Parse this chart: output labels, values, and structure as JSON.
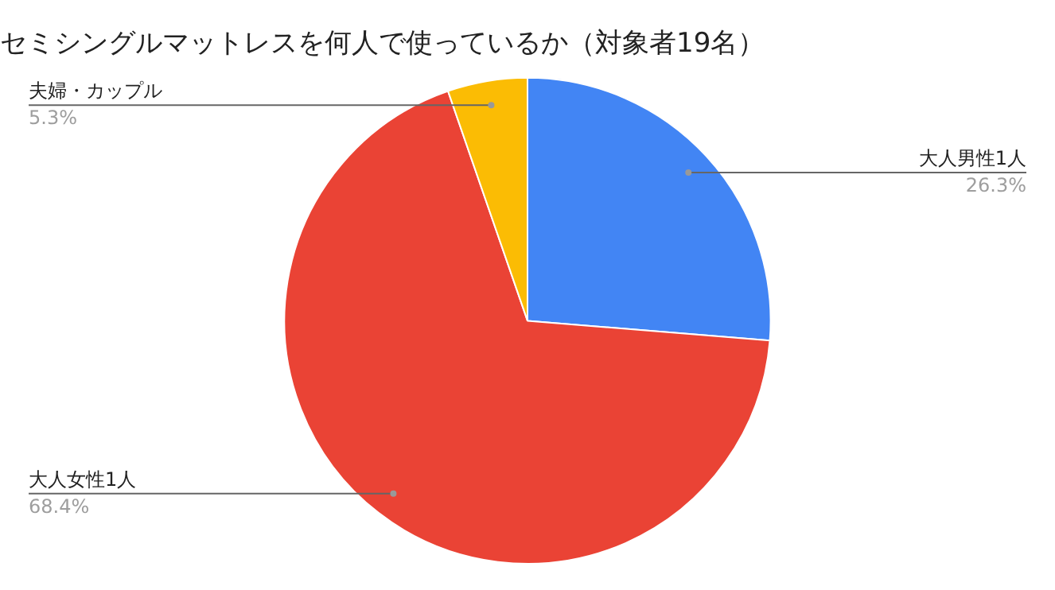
{
  "chart_data": {
    "type": "pie",
    "title": "セミシングルマットレスを何人で使っているか（対象者19名）",
    "categories": [
      "大人男性1人",
      "大人女性1人",
      "夫婦・カップル"
    ],
    "values": [
      26.3,
      68.4,
      5.3
    ],
    "value_labels": [
      "26.3%",
      "68.4%",
      "5.3%"
    ],
    "colors": [
      "#4285f4",
      "#ea4335",
      "#fbbc04"
    ],
    "legend": false
  }
}
